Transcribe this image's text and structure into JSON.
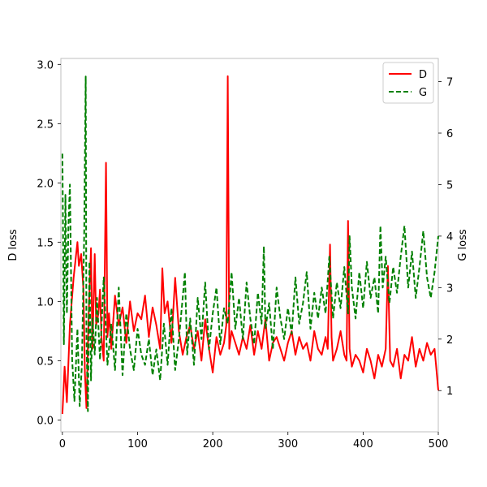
{
  "chart_data": {
    "type": "line",
    "title": "",
    "xlabel": "",
    "ylabel_left": "D loss",
    "ylabel_right": "G loss",
    "xlim": [
      -2,
      500
    ],
    "ylim_left": [
      -0.1,
      3.05
    ],
    "ylim_right": [
      0.2,
      7.45
    ],
    "x_ticks": [
      0,
      100,
      200,
      300,
      400,
      500
    ],
    "y_ticks_left": [
      0.0,
      0.5,
      1.0,
      1.5,
      2.0,
      2.5,
      3.0
    ],
    "y_ticks_right": [
      1,
      2,
      3,
      4,
      5,
      6,
      7
    ],
    "grid": false,
    "legend_position": "top-right",
    "colors": {
      "D": "#ff0000",
      "G": "#008000"
    },
    "series": [
      {
        "name": "D",
        "axis": "left",
        "style": "solid",
        "x": [
          0,
          3,
          6,
          10,
          15,
          20,
          22,
          25,
          28,
          30,
          32,
          35,
          38,
          40,
          43,
          45,
          48,
          50,
          52,
          55,
          58,
          60,
          62,
          65,
          70,
          75,
          80,
          85,
          90,
          95,
          100,
          105,
          110,
          115,
          120,
          125,
          130,
          133,
          136,
          140,
          145,
          150,
          155,
          160,
          165,
          170,
          175,
          180,
          185,
          190,
          195,
          200,
          205,
          210,
          215,
          218,
          220,
          222,
          225,
          230,
          235,
          240,
          245,
          250,
          255,
          260,
          265,
          270,
          275,
          280,
          285,
          290,
          295,
          300,
          305,
          310,
          315,
          320,
          325,
          330,
          335,
          340,
          345,
          350,
          353,
          356,
          358,
          360,
          365,
          370,
          375,
          378,
          380,
          382,
          385,
          390,
          395,
          400,
          405,
          410,
          415,
          420,
          425,
          430,
          433,
          436,
          440,
          445,
          450,
          455,
          460,
          465,
          470,
          475,
          480,
          485,
          490,
          495,
          500
        ],
        "values": [
          0.05,
          0.45,
          0.15,
          0.8,
          1.2,
          1.5,
          1.3,
          1.4,
          1.1,
          0.4,
          0.1,
          0.9,
          1.45,
          0.6,
          1.4,
          0.8,
          0.9,
          1.1,
          0.7,
          0.5,
          2.17,
          0.7,
          0.9,
          0.6,
          1.05,
          0.8,
          0.95,
          0.65,
          1.0,
          0.75,
          0.9,
          0.85,
          1.05,
          0.7,
          0.95,
          0.8,
          0.6,
          1.28,
          0.9,
          1.0,
          0.65,
          1.2,
          0.75,
          0.55,
          0.7,
          0.8,
          0.6,
          0.75,
          0.5,
          0.85,
          0.6,
          0.4,
          0.7,
          0.55,
          0.65,
          0.8,
          2.9,
          0.6,
          0.75,
          0.65,
          0.55,
          0.7,
          0.6,
          0.8,
          0.55,
          0.75,
          0.6,
          0.85,
          0.5,
          0.65,
          0.7,
          0.6,
          0.5,
          0.65,
          0.75,
          0.55,
          0.7,
          0.6,
          0.65,
          0.5,
          0.75,
          0.6,
          0.55,
          0.7,
          0.6,
          1.48,
          0.7,
          0.5,
          0.6,
          0.75,
          0.55,
          0.5,
          1.68,
          0.6,
          0.45,
          0.55,
          0.5,
          0.4,
          0.6,
          0.5,
          0.35,
          0.55,
          0.45,
          0.6,
          1.3,
          0.5,
          0.45,
          0.6,
          0.35,
          0.55,
          0.5,
          0.7,
          0.45,
          0.6,
          0.5,
          0.65,
          0.55,
          0.6,
          0.25
        ]
      },
      {
        "name": "G",
        "axis": "right",
        "style": "dashed",
        "x": [
          0,
          2,
          4,
          6,
          8,
          10,
          13,
          16,
          20,
          23,
          26,
          29,
          31,
          32,
          34,
          36,
          38,
          40,
          43,
          46,
          50,
          55,
          60,
          65,
          70,
          75,
          80,
          85,
          90,
          95,
          100,
          105,
          110,
          115,
          120,
          125,
          130,
          135,
          140,
          145,
          150,
          155,
          160,
          163,
          166,
          170,
          175,
          180,
          185,
          190,
          195,
          200,
          205,
          210,
          215,
          220,
          225,
          230,
          235,
          240,
          245,
          250,
          255,
          260,
          265,
          268,
          270,
          275,
          280,
          285,
          290,
          295,
          300,
          305,
          310,
          315,
          320,
          325,
          330,
          335,
          340,
          345,
          350,
          355,
          360,
          365,
          370,
          375,
          380,
          382,
          385,
          390,
          395,
          400,
          405,
          410,
          415,
          420,
          423,
          426,
          430,
          435,
          440,
          445,
          450,
          455,
          460,
          465,
          470,
          475,
          480,
          485,
          490,
          495,
          500
        ],
        "values": [
          5.6,
          1.9,
          4.8,
          2.5,
          4.2,
          5.0,
          1.6,
          0.8,
          2.2,
          0.7,
          1.5,
          4.0,
          7.1,
          2.0,
          0.6,
          3.5,
          1.2,
          2.4,
          1.7,
          2.8,
          1.6,
          3.2,
          1.5,
          2.3,
          1.4,
          3.0,
          1.3,
          2.5,
          1.8,
          1.4,
          2.2,
          1.7,
          1.5,
          2.0,
          1.3,
          1.8,
          1.2,
          2.3,
          1.5,
          2.6,
          1.4,
          2.0,
          2.8,
          3.3,
          1.7,
          2.4,
          1.5,
          2.8,
          2.0,
          3.1,
          1.8,
          2.5,
          3.0,
          1.9,
          2.6,
          2.3,
          3.3,
          2.2,
          2.8,
          2.0,
          3.1,
          2.4,
          1.9,
          2.9,
          2.3,
          3.8,
          2.2,
          2.7,
          1.8,
          3.0,
          2.4,
          2.0,
          2.6,
          2.1,
          3.2,
          2.3,
          2.7,
          3.3,
          2.2,
          2.9,
          2.4,
          3.0,
          2.5,
          3.6,
          2.4,
          3.1,
          2.6,
          3.4,
          2.5,
          4.0,
          3.0,
          2.4,
          3.3,
          2.6,
          3.5,
          2.8,
          3.2,
          2.5,
          4.2,
          3.0,
          3.6,
          2.7,
          3.4,
          2.9,
          3.6,
          4.2,
          3.0,
          3.7,
          2.8,
          3.4,
          4.1,
          3.2,
          2.8,
          3.3,
          4.0
        ]
      }
    ]
  }
}
